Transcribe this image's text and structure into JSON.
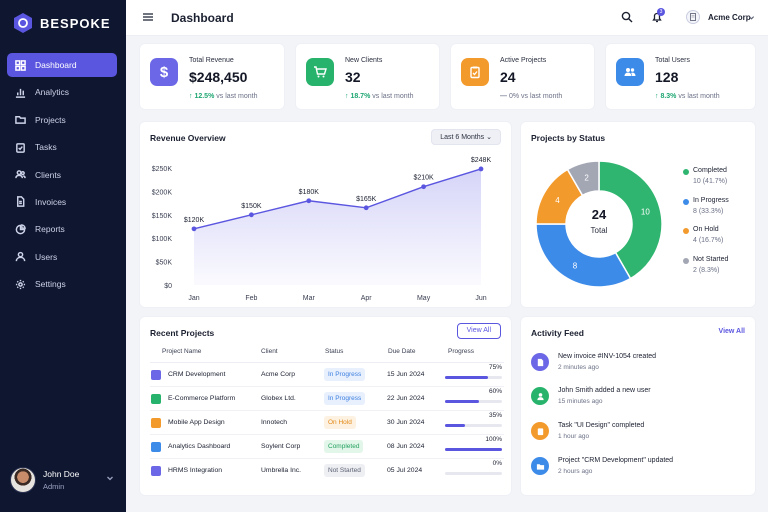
{
  "brand": {
    "name": "BESPOKE"
  },
  "sidebar": {
    "items": [
      {
        "label": "Dashboard",
        "icon": "grid-icon",
        "active": true
      },
      {
        "label": "Analytics",
        "icon": "bar-chart-icon"
      },
      {
        "label": "Projects",
        "icon": "folder-icon"
      },
      {
        "label": "Tasks",
        "icon": "clipboard-check-icon"
      },
      {
        "label": "Clients",
        "icon": "users-icon"
      },
      {
        "label": "Invoices",
        "icon": "document-icon"
      },
      {
        "label": "Reports",
        "icon": "pie-chart-icon"
      },
      {
        "label": "Users",
        "icon": "user-icon"
      },
      {
        "label": "Settings",
        "icon": "gear-icon"
      }
    ],
    "user": {
      "name": "John Doe",
      "role": "Admin"
    }
  },
  "header": {
    "title": "Dashboard",
    "notifications": "3",
    "org": "Acme Corp"
  },
  "stats": [
    {
      "label": "Total Revenue",
      "value": "$248,450",
      "arrow": "↑",
      "change": "12.5%",
      "suffix": "vs last month",
      "color": "#6b67e6",
      "icon": "dollar-icon"
    },
    {
      "label": "New Clients",
      "value": "32",
      "arrow": "↑",
      "change": "18.7%",
      "suffix": "vs last month",
      "color": "#27b36b",
      "icon": "cart-icon"
    },
    {
      "label": "Active Projects",
      "value": "24",
      "arrow": "—",
      "change": "0%",
      "suffix": "vs last month",
      "color": "#f39a2d",
      "icon": "clipboard-icon"
    },
    {
      "label": "Total Users",
      "value": "128",
      "arrow": "↑",
      "change": "8.3%",
      "suffix": "vs last month",
      "color": "#3d8be8",
      "icon": "users-icon"
    }
  ],
  "revenue": {
    "title": "Revenue Overview",
    "range": "Last 6 Months",
    "chart_data": {
      "type": "area",
      "categories": [
        "Jan",
        "Feb",
        "Mar",
        "Apr",
        "May",
        "Jun"
      ],
      "values": [
        120,
        150,
        180,
        165,
        210,
        248
      ],
      "data_labels": [
        "$120K",
        "$150K",
        "$180K",
        "$165K",
        "$210K",
        "$248K"
      ],
      "yticks": [
        "$0",
        "$50K",
        "$100K",
        "$150K",
        "$200K",
        "$250K"
      ],
      "ylim": [
        0,
        250
      ],
      "color": "#5b56e0",
      "grid": false
    }
  },
  "projects_status": {
    "title": "Projects by Status",
    "center_value": "24",
    "center_label": "Total",
    "chart_data": {
      "type": "pie",
      "labels": [
        "Completed",
        "In Progress",
        "On Hold",
        "Not Started"
      ],
      "values": [
        10,
        8,
        4,
        2
      ],
      "percents": [
        "10 (41.7%)",
        "8 (33.3%)",
        "4 (16.7%)",
        "2 (8.3%)"
      ],
      "colors": [
        "#2fb56f",
        "#3d8be8",
        "#f39a2d",
        "#a3a7b4"
      ],
      "legend": "right"
    }
  },
  "recent": {
    "title": "Recent Projects",
    "view_all": "View All",
    "columns": [
      "Project Name",
      "Client",
      "Status",
      "Due Date",
      "Progress"
    ],
    "rows": [
      {
        "name": "CRM Development",
        "client": "Acme Corp",
        "status": "In Progress",
        "due": "15 Jun 2024",
        "progress": 75,
        "pct": "75%",
        "icon_color": "#6b67e6",
        "status_bg": "#e8f0fd",
        "status_fg": "#3d7fe0"
      },
      {
        "name": "E-Commerce Platform",
        "client": "Globex Ltd.",
        "status": "In Progress",
        "due": "22 Jun 2024",
        "progress": 60,
        "pct": "60%",
        "icon_color": "#27b36b",
        "status_bg": "#e8f0fd",
        "status_fg": "#3d7fe0"
      },
      {
        "name": "Mobile App Design",
        "client": "Innotech",
        "status": "On Hold",
        "due": "30 Jun 2024",
        "progress": 35,
        "pct": "35%",
        "icon_color": "#f39a2d",
        "status_bg": "#fdf1e1",
        "status_fg": "#e38a17"
      },
      {
        "name": "Analytics Dashboard",
        "client": "Soylent Corp",
        "status": "Completed",
        "due": "08 Jun 2024",
        "progress": 100,
        "pct": "100%",
        "icon_color": "#3d8be8",
        "status_bg": "#e3f6ea",
        "status_fg": "#23a25f"
      },
      {
        "name": "HRMS Integration",
        "client": "Umbrella Inc.",
        "status": "Not Started",
        "due": "05 Jul 2024",
        "progress": 0,
        "pct": "0%",
        "icon_color": "#6b67e6",
        "status_bg": "#eeeff3",
        "status_fg": "#5c6173"
      }
    ]
  },
  "activity": {
    "title": "Activity Feed",
    "view_all": "View All",
    "items": [
      {
        "text": "New invoice #INV-1054 created",
        "time": "2 minutes ago",
        "color": "#6b67e6",
        "icon": "document-icon"
      },
      {
        "text": "John Smith added a new user",
        "time": "15 minutes ago",
        "color": "#27b36b",
        "icon": "user-add-icon"
      },
      {
        "text": "Task \"UI Design\" completed",
        "time": "1 hour ago",
        "color": "#f39a2d",
        "icon": "clipboard-icon"
      },
      {
        "text": "Project \"CRM Development\" updated",
        "time": "2 hours ago",
        "color": "#3d8be8",
        "icon": "folder-icon"
      }
    ]
  }
}
